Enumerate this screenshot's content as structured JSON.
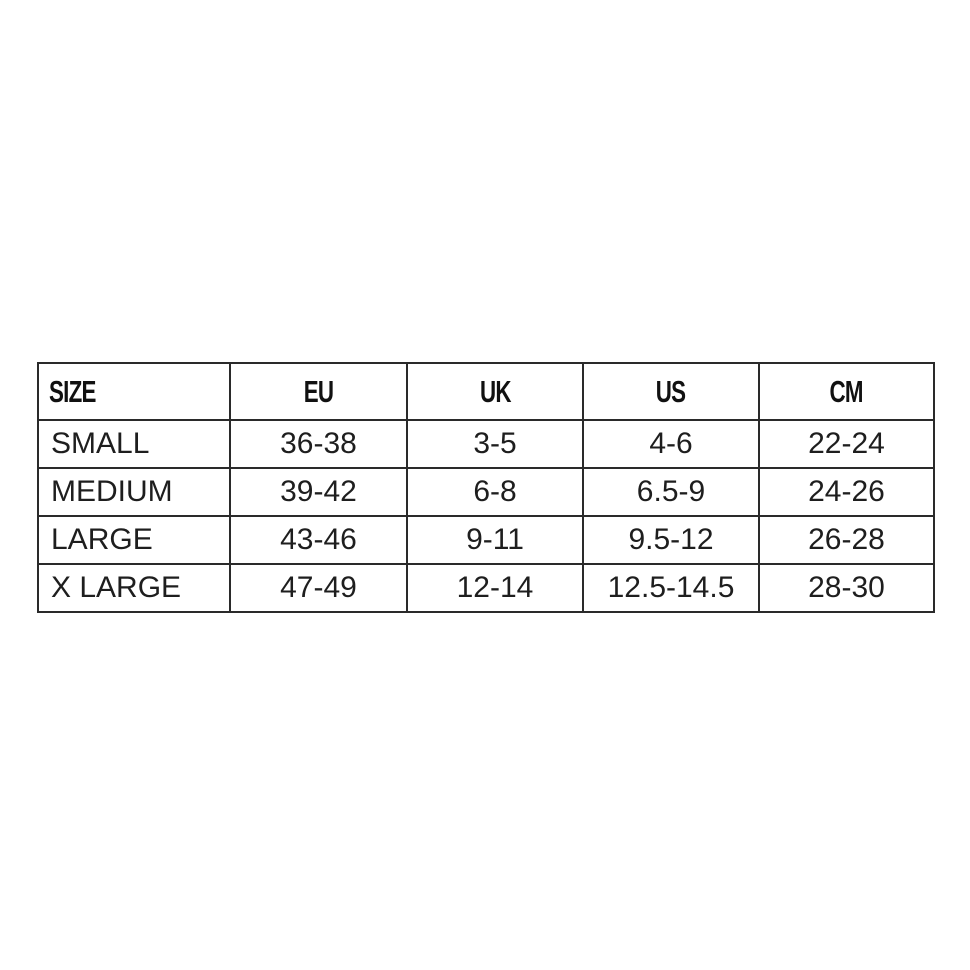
{
  "table": {
    "headers": [
      "SIZE",
      "EU",
      "UK",
      "US",
      "CM"
    ],
    "rows": [
      [
        "SMALL",
        "36-38",
        "3-5",
        "4-6",
        "22-24"
      ],
      [
        "MEDIUM",
        "39-42",
        "6-8",
        "6.5-9",
        "24-26"
      ],
      [
        "LARGE",
        "43-46",
        "9-11",
        "9.5-12",
        "26-28"
      ],
      [
        "X LARGE",
        "47-49",
        "12-14",
        "12.5-14.5",
        "28-30"
      ]
    ]
  }
}
